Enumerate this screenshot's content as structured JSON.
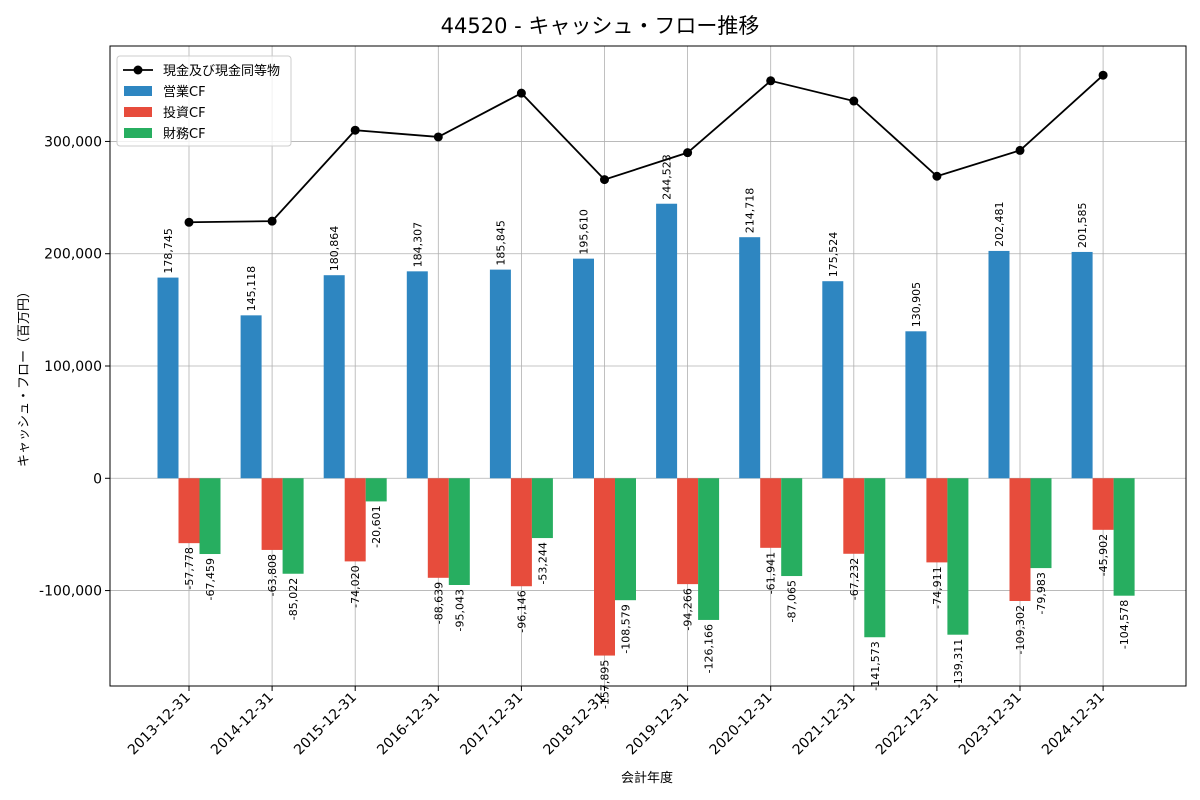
{
  "chart_data": {
    "type": "bar",
    "title": "44520 - キャッシュ・フロー推移",
    "xlabel": "会計年度",
    "ylabel": "キャッシュ・フロー（百万円）",
    "ylim": [
      -185000,
      385000
    ],
    "yticks": [
      -100000,
      0,
      100000,
      200000,
      300000
    ],
    "ytick_labels": [
      "-100,000",
      "0",
      "100,000",
      "200,000",
      "300,000"
    ],
    "grid": true,
    "legend_position": "top-left",
    "categories": [
      "2013-12-31",
      "2014-12-31",
      "2015-12-31",
      "2016-12-31",
      "2017-12-31",
      "2018-12-31",
      "2019-12-31",
      "2020-12-31",
      "2021-12-31",
      "2022-12-31",
      "2023-12-31",
      "2024-12-31"
    ],
    "series": [
      {
        "name": "営業CF",
        "type": "bar",
        "color": "#2e86c1",
        "values": [
          178745,
          145118,
          180864,
          184307,
          185845,
          195610,
          244523,
          214718,
          175524,
          130905,
          202481,
          201585
        ],
        "labels": [
          "178,745",
          "145,118",
          "180,864",
          "184,307",
          "185,845",
          "195,610",
          "244,523",
          "214,718",
          "175,524",
          "130,905",
          "202,481",
          "201,585"
        ]
      },
      {
        "name": "投資CF",
        "type": "bar",
        "color": "#e74c3c",
        "values": [
          -57778,
          -63808,
          -74020,
          -88639,
          -96146,
          -157895,
          -94266,
          -61941,
          -67232,
          -74911,
          -109302,
          -45902
        ],
        "labels": [
          "-57,778",
          "-63,808",
          "-74,020",
          "-88,639",
          "-96,146",
          "-157,895",
          "-94,266",
          "-61,941",
          "-67,232",
          "-74,911",
          "-109,302",
          "-45,902"
        ]
      },
      {
        "name": "財務CF",
        "type": "bar",
        "color": "#27ae60",
        "values": [
          -67459,
          -85022,
          -20601,
          -95043,
          -53244,
          -108579,
          -126166,
          -87065,
          -141573,
          -139311,
          -79983,
          -104578
        ],
        "labels": [
          "-67,459",
          "-85,022",
          "-20,601",
          "-95,043",
          "-53,244",
          "-108,579",
          "-126,166",
          "-87,065",
          "-141,573",
          "-139,311",
          "-79,983",
          "-104,578"
        ]
      },
      {
        "name": "現金及び現金同等物",
        "type": "line",
        "color": "#000000",
        "values": [
          228000,
          229000,
          310000,
          304000,
          343000,
          266000,
          290000,
          354000,
          336000,
          269000,
          292000,
          359000
        ]
      }
    ]
  }
}
